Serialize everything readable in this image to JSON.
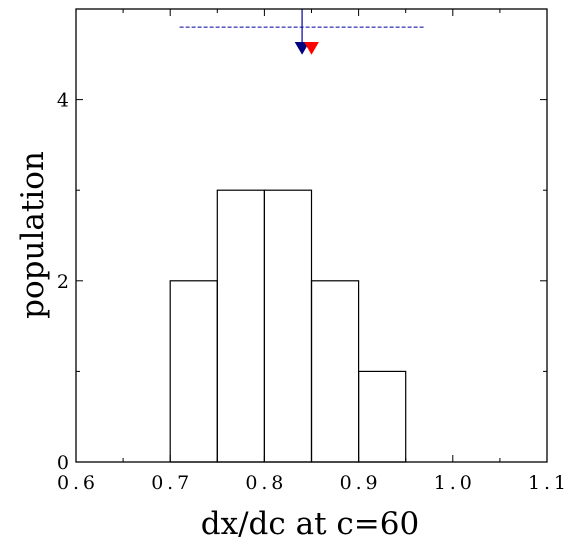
{
  "chart_data": {
    "type": "bar",
    "title": "",
    "xlabel": "dx/dc at c=60",
    "ylabel": "population",
    "xlim": [
      0.6,
      1.1
    ],
    "ylim": [
      0,
      5
    ],
    "xticks": [
      0.6,
      0.7,
      0.8,
      0.9,
      1.0,
      1.1
    ],
    "xtick_labels": [
      "0.6",
      "0.7",
      "0.8",
      "0.9",
      "1.0",
      "1.1"
    ],
    "yticks": [
      0,
      2,
      4
    ],
    "ytick_labels": [
      "0",
      "2",
      "4"
    ],
    "bin_width": 0.05,
    "bins": [
      {
        "x0": 0.7,
        "x1": 0.75,
        "count": 2
      },
      {
        "x0": 0.75,
        "x1": 0.8,
        "count": 3
      },
      {
        "x0": 0.8,
        "x1": 0.85,
        "count": 3
      },
      {
        "x0": 0.85,
        "x1": 0.9,
        "count": 2
      },
      {
        "x0": 0.9,
        "x1": 0.95,
        "count": 1
      }
    ],
    "interval": {
      "x_min": 0.71,
      "x_max": 0.97,
      "y": 4.8,
      "color": "#0000a0"
    },
    "markers": [
      {
        "x": 0.84,
        "y": 4.5,
        "color": "#000080"
      },
      {
        "x": 0.85,
        "y": 4.5,
        "color": "#ff0000"
      }
    ],
    "reference_line": {
      "x": 0.84,
      "y_from": 4.55,
      "y_to": 5,
      "color": "#0000a0"
    },
    "grid": false,
    "legend": "none"
  }
}
